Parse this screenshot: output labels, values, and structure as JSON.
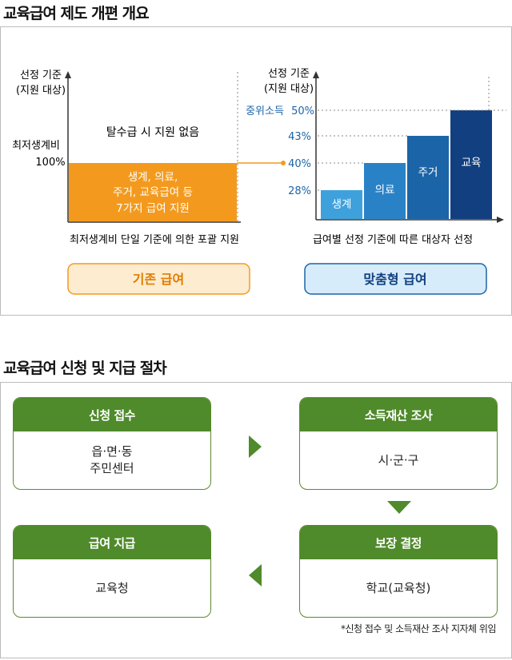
{
  "section1": {
    "title": "교육급여 제도 개편 개요"
  },
  "left_chart": {
    "ylabel_line1": "선정 기준",
    "ylabel_line2": "(지원 대상)",
    "level_label_line1": "최저생계비",
    "level_label_line2": "100%",
    "above_note": "탈수급 시 지원 없음",
    "bar_text_line1": "생계, 의료,",
    "bar_text_line2": "주거, 교육급여 등",
    "bar_text_line3": "7가지 급여 지원",
    "caption": "최저생계비 단일 기준에 의한 포괄 지원",
    "badge": "기존 급여",
    "bar_color": "#f39a1e"
  },
  "right_chart": {
    "ylabel_line1": "선정 기준",
    "ylabel_line2": "(지원 대상)",
    "caption": "급여별 선정 기준에 따른 대상자 선정",
    "badge": "맞춤형 급여",
    "chart_data": {
      "type": "bar",
      "categories": [
        "생계",
        "의료",
        "주거",
        "교육"
      ],
      "values": [
        28,
        40,
        43,
        50
      ],
      "tick_labels": [
        "28%",
        "40%",
        "43%",
        "50%"
      ],
      "top_tick_prefix": "중위소득",
      "ylabel": "선정 기준 (지원 대상)",
      "ylim": [
        0,
        50
      ],
      "colors": [
        "#3ea1dc",
        "#2a82c6",
        "#1c64a8",
        "#123f80"
      ]
    }
  },
  "section2": {
    "title": "교육급여 신청 및 지급 절차"
  },
  "steps": [
    {
      "head": "신청 접수",
      "body_line1": "읍·면·동",
      "body_line2": "주민센터"
    },
    {
      "head": "소득재산 조사",
      "body_line1": "시·군·구",
      "body_line2": ""
    },
    {
      "head": "보장 결정",
      "body_line1": "학교(교육청)",
      "body_line2": ""
    },
    {
      "head": "급여 지급",
      "body_line1": "교육청",
      "body_line2": ""
    }
  ],
  "footnote": "*신청 접수 및 소득재산 조사 지자체 위임",
  "colors": {
    "green": "#4f8a2b",
    "orange": "#f39a1e",
    "blue_dark": "#123f80"
  }
}
